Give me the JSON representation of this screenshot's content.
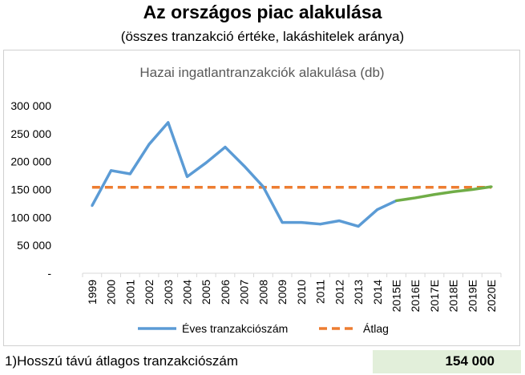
{
  "header": {
    "title": "Az országos piac alakulása",
    "subtitle": "(összes tranzakció értéke, lakáshitelek aránya)"
  },
  "chart_data": {
    "type": "line",
    "title": "Hazai ingatlantranzakciók alakulása (db)",
    "categories": [
      "1999",
      "2000",
      "2001",
      "2002",
      "2003",
      "2004",
      "2005",
      "2006",
      "2007",
      "2008",
      "2009",
      "2010",
      "2011",
      "2012",
      "2013",
      "2014",
      "2015E",
      "2016E",
      "2017E",
      "2018E",
      "2019E",
      "2020E"
    ],
    "series": [
      {
        "name": "Éves tranzakciószám",
        "color": "#5b9bd5",
        "forecast_color": "#70ad47",
        "forecast_start_index": 16,
        "values": [
          121000,
          184000,
          178000,
          231000,
          270000,
          173000,
          198000,
          226000,
          192000,
          155000,
          91000,
          91000,
          88000,
          94000,
          84000,
          114000,
          130000,
          135000,
          141000,
          146000,
          150000,
          155000
        ]
      },
      {
        "name": "Átlag",
        "color": "#ed7d31",
        "style": "dashed",
        "values": [
          154000,
          154000,
          154000,
          154000,
          154000,
          154000,
          154000,
          154000,
          154000,
          154000,
          154000,
          154000,
          154000,
          154000,
          154000,
          154000,
          154000,
          154000,
          154000,
          154000,
          154000,
          154000
        ]
      }
    ],
    "ylim": [
      0,
      300000
    ],
    "yticks": [
      0,
      50000,
      100000,
      150000,
      200000,
      250000,
      300000
    ],
    "ytick_labels": [
      "-",
      "50 000",
      "100 000",
      "150 000",
      "200 000",
      "250 000",
      "300 000"
    ],
    "grid": false,
    "legend_position": "bottom"
  },
  "footer": {
    "label": "1)Hosszú távú átlagos tranzakciószám",
    "value": "154 000"
  }
}
